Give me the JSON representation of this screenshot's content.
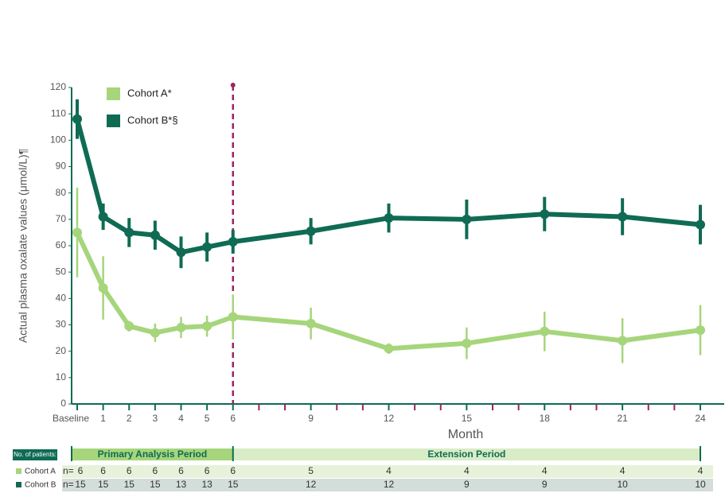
{
  "chart_data": {
    "type": "line",
    "y_label": "Actual plasma oxalate values (μmol/L)¶",
    "x_label": "Month",
    "x": [
      0,
      1,
      2,
      3,
      4,
      5,
      6,
      9,
      12,
      15,
      18,
      21,
      24
    ],
    "xlim": [
      0,
      24
    ],
    "xticks": [
      {
        "value": 0,
        "label": "Baseline"
      },
      1,
      2,
      3,
      4,
      5,
      6,
      9,
      12,
      15,
      18,
      21,
      24
    ],
    "x_minor_ticks": [
      7,
      8,
      10,
      11,
      13,
      14,
      16,
      17,
      19,
      20,
      22,
      23
    ],
    "ylim": [
      0,
      120
    ],
    "yticks": [
      0,
      10,
      20,
      30,
      40,
      50,
      60,
      70,
      80,
      90,
      100,
      110,
      120
    ],
    "reference_line_x": 6,
    "reference_color": "#9c2462",
    "series": [
      {
        "name": "Cohort A*",
        "color": "#a6d57b",
        "values": [
          65,
          44,
          29.5,
          27,
          29,
          29.5,
          33,
          30.5,
          21,
          23,
          27.5,
          24,
          28
        ],
        "errors": [
          17,
          12,
          2,
          3.5,
          4,
          4,
          8.5,
          6,
          2,
          6,
          7.5,
          8.5,
          9.5
        ]
      },
      {
        "name": "Cohort B*§",
        "color": "#0f6b54",
        "values": [
          108,
          71,
          65,
          64,
          57.5,
          59.5,
          61.5,
          65.5,
          70.5,
          70,
          72,
          71,
          68
        ],
        "errors": [
          7.5,
          5,
          5.5,
          5.5,
          6,
          5.5,
          4.5,
          5,
          5.5,
          7.5,
          6.5,
          7,
          7.5
        ]
      }
    ],
    "patient_table": {
      "label": "No. of patients:",
      "periods": [
        "Primary Analysis Period",
        "Extension Period"
      ],
      "rows": [
        {
          "name": "Cohort A",
          "prefix": "n=",
          "counts": [
            6,
            6,
            6,
            6,
            6,
            6,
            6,
            5,
            4,
            4,
            4,
            4,
            4
          ]
        },
        {
          "name": "Cohort B",
          "prefix": "n=",
          "counts": [
            15,
            15,
            15,
            15,
            13,
            13,
            15,
            12,
            12,
            9,
            9,
            10,
            10
          ]
        }
      ]
    }
  }
}
